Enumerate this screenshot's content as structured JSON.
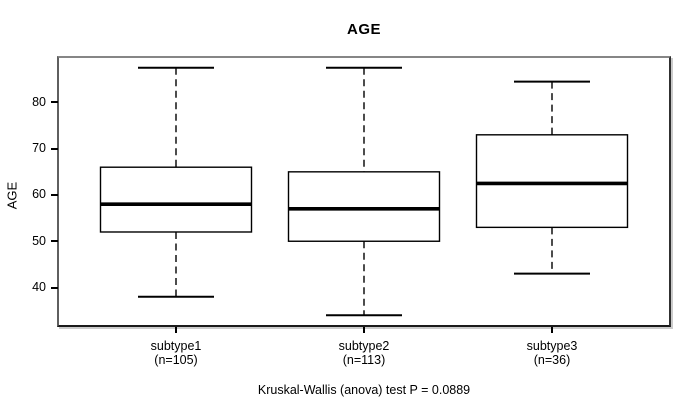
{
  "chart_data": {
    "type": "boxplot",
    "title": "AGE",
    "xlabel": "",
    "ylabel": "AGE",
    "caption": "Kruskal-Wallis (anova) test P = 0.0889",
    "ylim": [
      31.9,
      89.6
    ],
    "y_ticks": [
      40,
      50,
      60,
      70,
      80
    ],
    "grid": false,
    "legend": "none",
    "colors": {
      "box_fill": "#ffffff",
      "line": "#000000",
      "frame_gray": "#868686"
    },
    "groups": [
      {
        "label": "subtype1",
        "sublabel": "(n=105)",
        "n": 105,
        "whisker_low": 38,
        "q1": 52,
        "median": 58,
        "q3": 66,
        "whisker_high": 87.5
      },
      {
        "label": "subtype2",
        "sublabel": "(n=113)",
        "n": 113,
        "whisker_low": 34,
        "q1": 50,
        "median": 57,
        "q3": 65,
        "whisker_high": 87.5
      },
      {
        "label": "subtype3",
        "sublabel": "(n=36)",
        "n": 36,
        "whisker_low": 43,
        "q1": 53,
        "median": 62.5,
        "q3": 73,
        "whisker_high": 84.5
      }
    ]
  }
}
